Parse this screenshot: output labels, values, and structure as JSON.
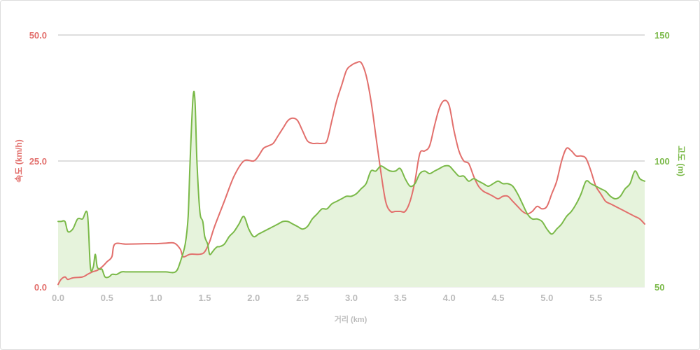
{
  "chart_data": {
    "type": "line",
    "title": "",
    "xlabel": "거리 (km)",
    "ylabel_left": "속도 (km/h)",
    "ylabel_right": "고도 (m)",
    "xlim": [
      0,
      6.0
    ],
    "ylim_left": [
      0,
      50
    ],
    "ylim_right": [
      50,
      150
    ],
    "x_ticks": [
      "0.0",
      "0.5",
      "1.0",
      "1.5",
      "2.0",
      "2.5",
      "3.0",
      "3.5",
      "4.0",
      "4.5",
      "5.0",
      "5.5"
    ],
    "y_left_ticks": [
      "0.0",
      "25.0",
      "50.0"
    ],
    "y_right_ticks": [
      "50",
      "100",
      "150"
    ],
    "grid": true,
    "legend": "none",
    "series": [
      {
        "axis": "left",
        "type": "line",
        "color": "#e26f6c",
        "x": [
          0.0,
          0.03,
          0.07,
          0.1,
          0.15,
          0.25,
          0.3,
          0.35,
          0.4,
          0.45,
          0.5,
          0.55,
          0.58,
          0.7,
          0.9,
          1.0,
          1.1,
          1.19,
          1.25,
          1.28,
          1.35,
          1.45,
          1.5,
          1.55,
          1.6,
          1.7,
          1.8,
          1.9,
          2.0,
          2.05,
          2.1,
          2.15,
          2.2,
          2.25,
          2.3,
          2.35,
          2.4,
          2.45,
          2.5,
          2.55,
          2.6,
          2.65,
          2.7,
          2.75,
          2.8,
          2.85,
          2.9,
          2.95,
          3.0,
          3.05,
          3.1,
          3.15,
          3.2,
          3.25,
          3.3,
          3.35,
          3.4,
          3.45,
          3.5,
          3.55,
          3.6,
          3.65,
          3.7,
          3.75,
          3.8,
          3.85,
          3.9,
          3.95,
          4.0,
          4.05,
          4.1,
          4.15,
          4.2,
          4.25,
          4.3,
          4.35,
          4.4,
          4.45,
          4.5,
          4.55,
          4.6,
          4.65,
          4.7,
          4.75,
          4.8,
          4.85,
          4.9,
          4.95,
          5.0,
          5.05,
          5.1,
          5.15,
          5.2,
          5.25,
          5.3,
          5.35,
          5.4,
          5.45,
          5.5,
          5.55,
          5.6,
          5.65,
          5.7,
          5.75,
          5.8,
          5.85,
          5.9,
          5.95,
          6.0
        ],
        "y": [
          0.5,
          1.5,
          2.0,
          1.5,
          1.8,
          2.0,
          2.5,
          3.0,
          3.3,
          4.0,
          5.0,
          6.0,
          8.5,
          8.5,
          8.6,
          8.6,
          8.7,
          8.7,
          7.5,
          6.0,
          6.5,
          6.5,
          7.0,
          9.0,
          12.0,
          17.0,
          22.0,
          25.0,
          25.0,
          26.0,
          27.5,
          28.0,
          28.5,
          30.0,
          31.5,
          33.0,
          33.5,
          33.0,
          31.0,
          29.0,
          28.5,
          28.5,
          28.5,
          29.0,
          33.0,
          37.0,
          40.0,
          43.0,
          44.0,
          44.5,
          44.5,
          42.0,
          37.0,
          30.0,
          23.0,
          17.0,
          15.0,
          15.0,
          15.0,
          15.0,
          17.0,
          21.0,
          26.5,
          27.0,
          28.0,
          32.0,
          35.5,
          37.0,
          36.0,
          31.0,
          27.0,
          25.0,
          24.5,
          22.0,
          20.0,
          19.0,
          18.5,
          18.0,
          17.5,
          18.0,
          18.0,
          17.0,
          16.0,
          15.0,
          14.5,
          15.0,
          16.0,
          15.5,
          16.0,
          18.5,
          21.0,
          25.0,
          27.5,
          27.0,
          26.0,
          26.0,
          25.5,
          23.0,
          20.0,
          18.5,
          17.0,
          16.5,
          16.0,
          15.5,
          15.0,
          14.5,
          14.0,
          13.5,
          12.5
        ]
      },
      {
        "axis": "right",
        "type": "area",
        "color": "#7ab948",
        "fill": "#e6f3dc",
        "x": [
          0.0,
          0.03,
          0.07,
          0.1,
          0.15,
          0.2,
          0.25,
          0.3,
          0.33,
          0.36,
          0.38,
          0.4,
          0.43,
          0.45,
          0.48,
          0.52,
          0.55,
          0.58,
          0.6,
          0.65,
          0.7,
          0.8,
          0.9,
          1.0,
          1.1,
          1.2,
          1.25,
          1.3,
          1.33,
          1.35,
          1.38,
          1.4,
          1.42,
          1.45,
          1.48,
          1.5,
          1.53,
          1.55,
          1.58,
          1.6,
          1.63,
          1.65,
          1.7,
          1.75,
          1.8,
          1.85,
          1.9,
          1.95,
          2.0,
          2.05,
          2.1,
          2.15,
          2.2,
          2.25,
          2.3,
          2.35,
          2.4,
          2.45,
          2.5,
          2.55,
          2.6,
          2.65,
          2.7,
          2.75,
          2.8,
          2.85,
          2.9,
          2.95,
          3.0,
          3.05,
          3.1,
          3.15,
          3.2,
          3.25,
          3.3,
          3.35,
          3.4,
          3.45,
          3.5,
          3.55,
          3.6,
          3.65,
          3.7,
          3.75,
          3.8,
          3.85,
          3.9,
          3.95,
          4.0,
          4.05,
          4.1,
          4.15,
          4.2,
          4.25,
          4.3,
          4.35,
          4.4,
          4.45,
          4.5,
          4.55,
          4.6,
          4.65,
          4.7,
          4.75,
          4.8,
          4.85,
          4.9,
          4.95,
          5.0,
          5.05,
          5.1,
          5.15,
          5.2,
          5.25,
          5.3,
          5.35,
          5.4,
          5.45,
          5.5,
          5.55,
          5.6,
          5.65,
          5.7,
          5.75,
          5.8,
          5.85,
          5.9,
          5.95,
          6.0
        ],
        "y": [
          76,
          76,
          76,
          72,
          73,
          77,
          77,
          79,
          58,
          58,
          63,
          58,
          57,
          57,
          54,
          54,
          55,
          55,
          55,
          56,
          56,
          56,
          56,
          56,
          56,
          56,
          60,
          67,
          78,
          100,
          125,
          124,
          100,
          80,
          76,
          70,
          67,
          63,
          64,
          65,
          66,
          66,
          67,
          70,
          72,
          75,
          78,
          73,
          70,
          71,
          72,
          73,
          74,
          75,
          76,
          76,
          75,
          74,
          73,
          74,
          77,
          79,
          81,
          81,
          83,
          84,
          85,
          86,
          86,
          87,
          89,
          91,
          96,
          96,
          98,
          97,
          96,
          96,
          97,
          93,
          90,
          91,
          95,
          96,
          95,
          96,
          97,
          98,
          98,
          96,
          94,
          94,
          92,
          93,
          92,
          91,
          90,
          91,
          92,
          91,
          91,
          90,
          87,
          83,
          79,
          77,
          77,
          76,
          73,
          71,
          73,
          75,
          78,
          80,
          83,
          87,
          92,
          91,
          90,
          89,
          88,
          86,
          85,
          86,
          89,
          91,
          96,
          93,
          92
        ]
      }
    ]
  }
}
